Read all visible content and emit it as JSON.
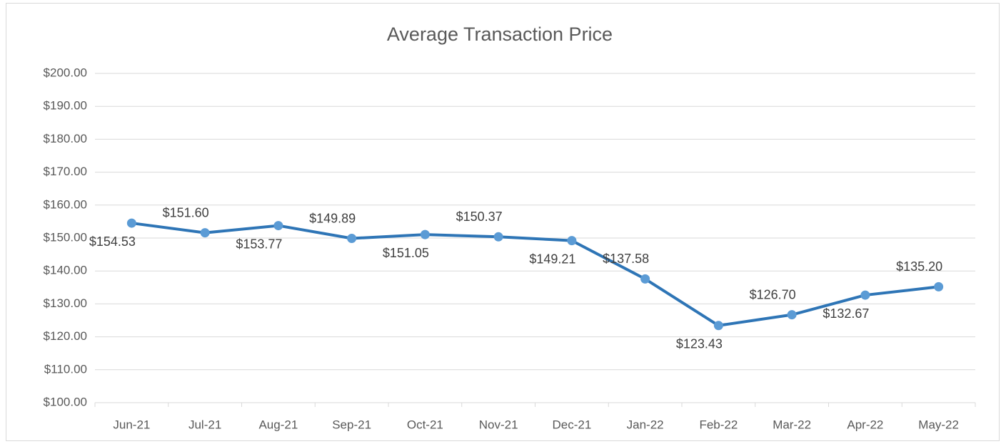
{
  "chart_data": {
    "type": "line",
    "title": "Average Transaction Price",
    "categories": [
      "Jun-21",
      "Jul-21",
      "Aug-21",
      "Sep-21",
      "Oct-21",
      "Nov-21",
      "Dec-21",
      "Jan-22",
      "Feb-22",
      "Mar-22",
      "Apr-22",
      "May-22"
    ],
    "values": [
      154.53,
      151.6,
      153.77,
      149.89,
      151.05,
      150.37,
      149.21,
      137.58,
      123.43,
      126.7,
      132.67,
      135.2
    ],
    "value_labels": [
      "$154.53",
      "$151.60",
      "$153.77",
      "$149.89",
      "$151.05",
      "$150.37",
      "$149.21",
      "$137.58",
      "$123.43",
      "$126.70",
      "$132.67",
      "$135.20"
    ],
    "color": "#2e75b6",
    "marker_color": "#5b9bd5",
    "ylim": [
      100,
      200
    ],
    "yticks": [
      {
        "value": 100,
        "label": "$100.00"
      },
      {
        "value": 110,
        "label": "$110.00"
      },
      {
        "value": 120,
        "label": "$120.00"
      },
      {
        "value": 130,
        "label": "$130.00"
      },
      {
        "value": 140,
        "label": "$140.00"
      },
      {
        "value": 150,
        "label": "$150.00"
      },
      {
        "value": 160,
        "label": "$160.00"
      },
      {
        "value": 170,
        "label": "$170.00"
      },
      {
        "value": 180,
        "label": "$180.00"
      },
      {
        "value": 190,
        "label": "$190.00"
      },
      {
        "value": 200,
        "label": "$200.00"
      }
    ],
    "grid": true
  }
}
